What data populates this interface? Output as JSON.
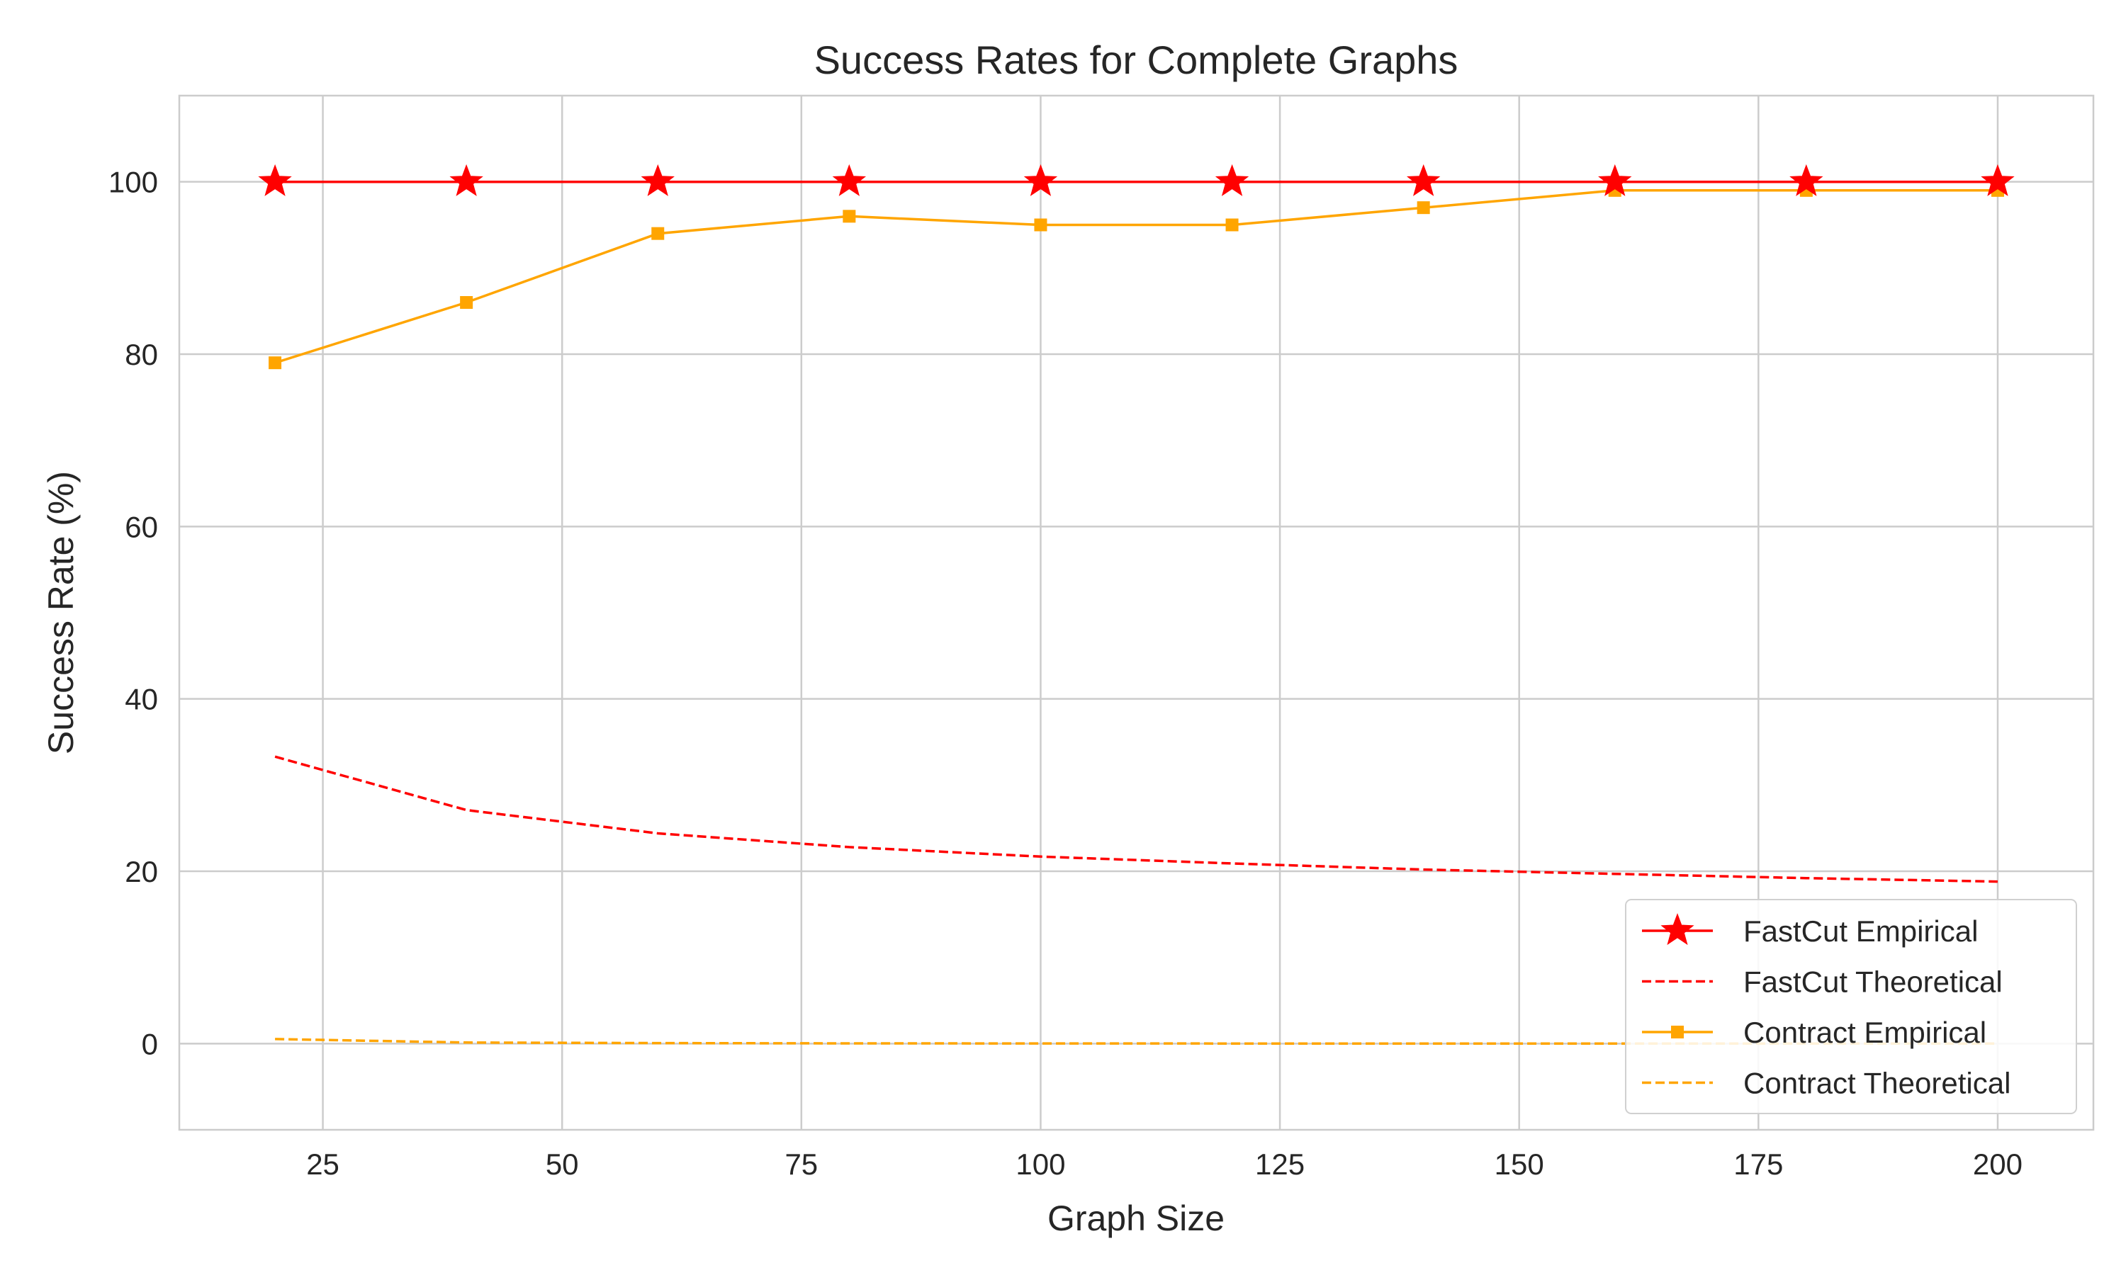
{
  "chart_data": {
    "type": "line",
    "title": "Success Rates for Complete Graphs",
    "xlabel": "Graph Size",
    "ylabel": "Success Rate (%)",
    "xlim": [
      10,
      210
    ],
    "ylim": [
      -10,
      110
    ],
    "xticks": [
      25,
      50,
      75,
      100,
      125,
      150,
      175,
      200
    ],
    "yticks": [
      0,
      20,
      40,
      60,
      80,
      100
    ],
    "grid": true,
    "legend_position": "lower-right",
    "x": [
      20,
      40,
      60,
      80,
      100,
      120,
      140,
      160,
      180,
      200
    ],
    "series": [
      {
        "name": "FastCut Empirical",
        "values": [
          100,
          100,
          100,
          100,
          100,
          100,
          100,
          100,
          100,
          100
        ],
        "color": "#ff0000",
        "line_style": "solid",
        "marker": "star"
      },
      {
        "name": "FastCut Theoretical",
        "values": [
          33.3,
          27.1,
          24.4,
          22.8,
          21.7,
          20.9,
          20.2,
          19.7,
          19.2,
          18.8
        ],
        "color": "#ff0000",
        "line_style": "dashed",
        "marker": "none"
      },
      {
        "name": "Contract Empirical",
        "values": [
          79,
          86,
          94,
          96,
          95,
          95,
          97,
          99,
          99,
          99
        ],
        "color": "#ffa500",
        "line_style": "solid",
        "marker": "square"
      },
      {
        "name": "Contract Theoretical",
        "values": [
          0.53,
          0.13,
          0.06,
          0.03,
          0.02,
          0.01,
          0.01,
          0.01,
          0.01,
          0.01
        ],
        "color": "#ffa500",
        "line_style": "dashed",
        "marker": "none"
      }
    ]
  }
}
